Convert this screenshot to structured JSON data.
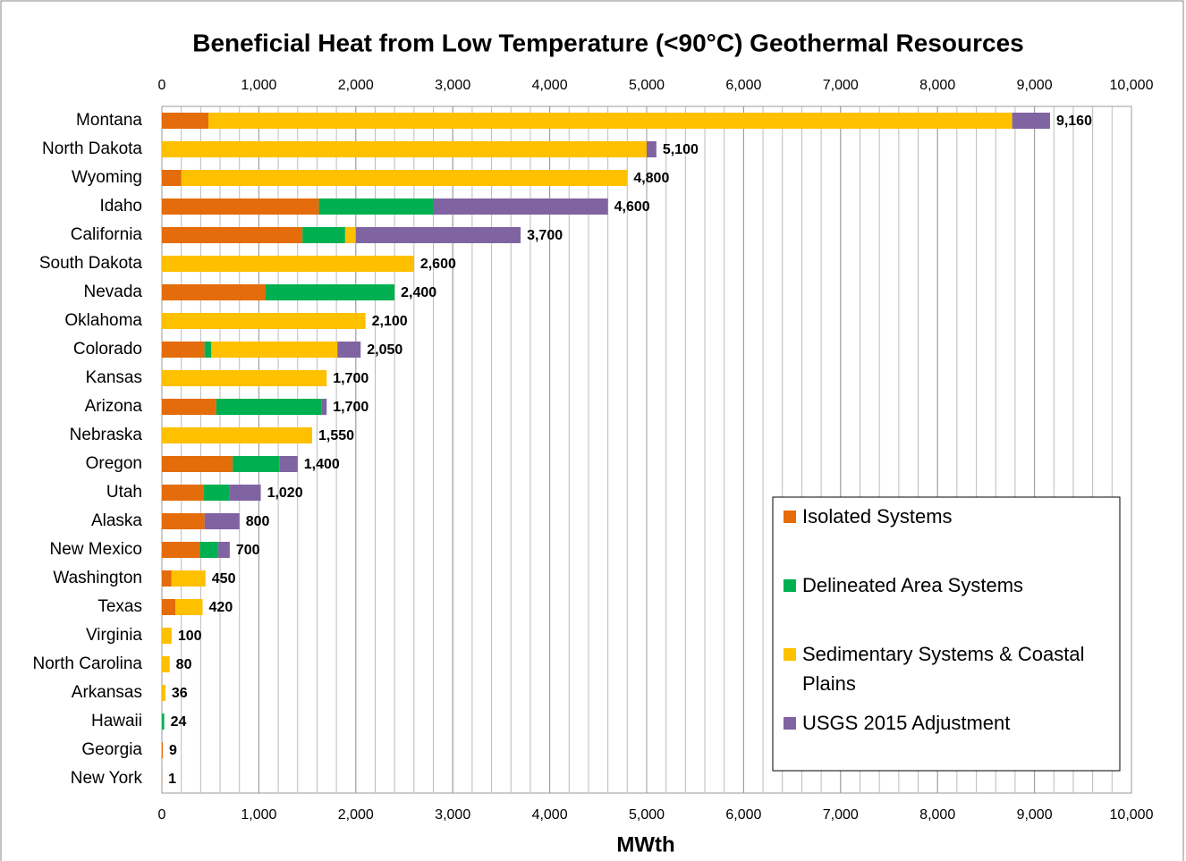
{
  "chart_data": {
    "type": "stacked_barh",
    "title": "Beneficial Heat from Low Temperature (<90°C) Geothermal Resources",
    "xlabel": "MWth",
    "categories": [
      "Montana",
      "North Dakota",
      "Wyoming",
      "Idaho",
      "California",
      "South Dakota",
      "Nevada",
      "Oklahoma",
      "Colorado",
      "Kansas",
      "Arizona",
      "Nebraska",
      "Oregon",
      "Utah",
      "Alaska",
      "New Mexico",
      "Washington",
      "Texas",
      "Virginia",
      "North Carolina",
      "Arkansas",
      "Hawaii",
      "Georgia",
      "New York"
    ],
    "series": [
      {
        "name": "Isolated Systems",
        "color": "#e46c0a",
        "values": [
          480,
          0,
          200,
          1620,
          1450,
          0,
          1070,
          0,
          440,
          0,
          560,
          0,
          730,
          430,
          440,
          390,
          100,
          140,
          0,
          0,
          0,
          0,
          9,
          1
        ]
      },
      {
        "name": "Delineated Area Systems",
        "color": "#00b050",
        "values": [
          0,
          0,
          0,
          1180,
          440,
          0,
          1330,
          0,
          70,
          0,
          1090,
          0,
          480,
          270,
          0,
          190,
          0,
          0,
          0,
          0,
          0,
          24,
          0,
          0
        ]
      },
      {
        "name": "Sedimentary Systems & Coastal Plains",
        "color": "#ffc000",
        "values": [
          8290,
          5000,
          4600,
          0,
          110,
          2600,
          0,
          2100,
          1300,
          1700,
          0,
          1550,
          0,
          0,
          0,
          0,
          350,
          280,
          100,
          80,
          36,
          0,
          0,
          0
        ]
      },
      {
        "name": "USGS 2015 Adjustment",
        "color": "#8064a2",
        "values": [
          390,
          100,
          0,
          1800,
          1700,
          0,
          0,
          0,
          240,
          0,
          50,
          0,
          190,
          320,
          360,
          120,
          0,
          0,
          0,
          0,
          0,
          0,
          0,
          0
        ]
      }
    ],
    "totals": [
      9160,
      5100,
      4800,
      4600,
      3700,
      2600,
      2400,
      2100,
      2050,
      1700,
      1700,
      1550,
      1400,
      1020,
      800,
      700,
      450,
      420,
      100,
      80,
      36,
      24,
      9,
      1
    ],
    "total_labels": [
      "9,160",
      "5,100",
      "4,800",
      "4,600",
      "3,700",
      "2,600",
      "2,400",
      "2,100",
      "2,050",
      "1,700",
      "1,700",
      "1,550",
      "1,400",
      "1,020",
      "800",
      "700",
      "450",
      "420",
      "100",
      "80",
      "36",
      "24",
      "9",
      "1"
    ],
    "xlim": [
      0,
      10000
    ],
    "xticks": [
      0,
      {
        "value": 1000,
        "label": "1,000"
      },
      {
        "value": 2000,
        "label": "2,000"
      },
      {
        "value": 3000,
        "label": "3,000"
      },
      {
        "value": 4000,
        "label": "4,000"
      },
      {
        "value": 5000,
        "label": "5,000"
      },
      {
        "value": 6000,
        "label": "6,000"
      },
      {
        "value": 7000,
        "label": "7,000"
      },
      {
        "value": 8000,
        "label": "8,000"
      },
      {
        "value": 9000,
        "label": "9,000"
      },
      {
        "value": 10000,
        "label": "10,000"
      }
    ],
    "minor_grid_step": 200,
    "grid": true,
    "legend": "lower right"
  }
}
